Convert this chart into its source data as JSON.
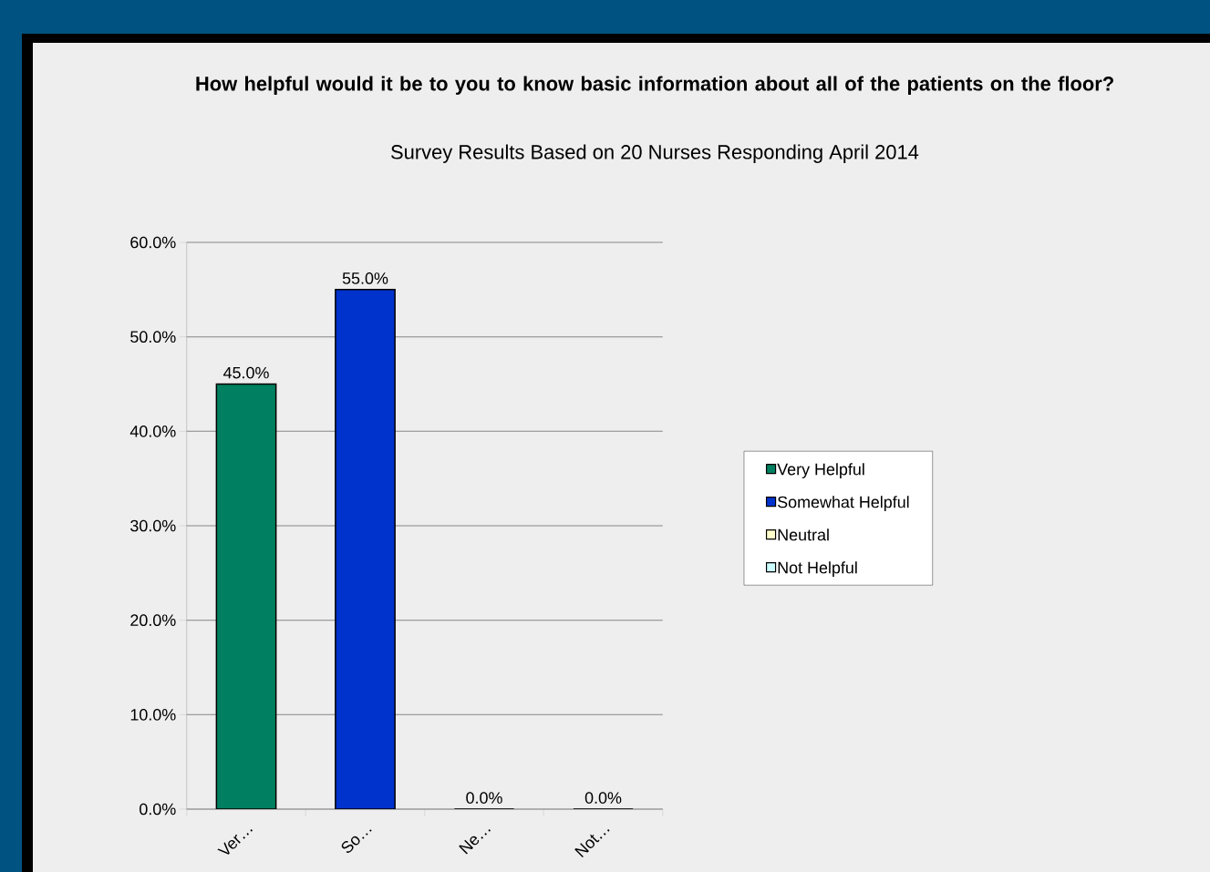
{
  "chart_data": {
    "type": "bar",
    "title": "How helpful would it be to you to know basic information about all of the patients on the floor?",
    "subtitle": "Survey Results Based on 20 Nurses Responding April 2014",
    "categories": [
      "Ver…",
      "So…",
      "Ne…",
      "Not…"
    ],
    "series": [
      {
        "name": "Very Helpful",
        "color": "#008060",
        "values": [
          45,
          null,
          null,
          null
        ],
        "value_labels": [
          "45.0%",
          null,
          null,
          null
        ]
      },
      {
        "name": "Somewhat Helpful",
        "color": "#0033cc",
        "values": [
          null,
          55,
          null,
          null
        ],
        "value_labels": [
          null,
          "55.0%",
          null,
          null
        ]
      },
      {
        "name": "Neutral",
        "color": "#ffffcc",
        "values": [
          null,
          null,
          0,
          null
        ],
        "value_labels": [
          null,
          null,
          "0.0%",
          null
        ]
      },
      {
        "name": "Not Helpful",
        "color": "#ccffff",
        "values": [
          null,
          null,
          null,
          0
        ],
        "value_labels": [
          null,
          null,
          null,
          "0.0%"
        ]
      }
    ],
    "ylim": [
      0,
      60
    ],
    "yticks": [
      {
        "value": 0,
        "label": "0.0%"
      },
      {
        "value": 10,
        "label": "10.0%"
      },
      {
        "value": 20,
        "label": "20.0%"
      },
      {
        "value": 30,
        "label": "30.0%"
      },
      {
        "value": 40,
        "label": "40.0%"
      },
      {
        "value": 50,
        "label": "50.0%"
      },
      {
        "value": 60,
        "label": "60.0%"
      }
    ],
    "grid": "y",
    "legend": "right"
  }
}
